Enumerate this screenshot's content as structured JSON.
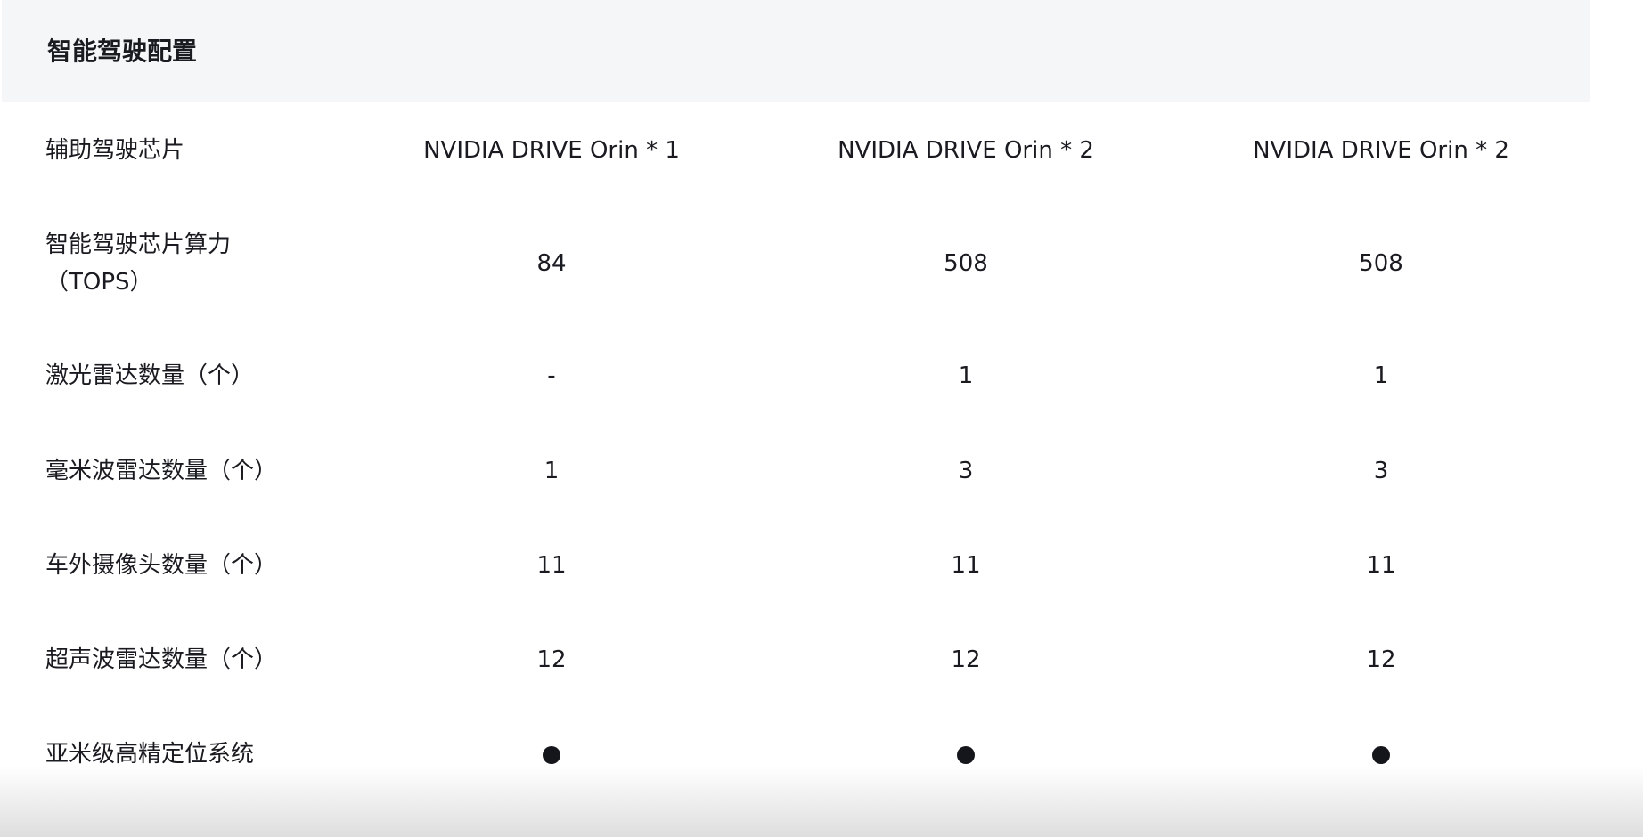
{
  "section": {
    "title": "智能驾驶配置"
  },
  "rows": [
    {
      "label": "辅助驾驶芯片",
      "values": [
        "NVIDIA DRIVE Orin * 1",
        "NVIDIA DRIVE Orin * 2",
        "NVIDIA DRIVE Orin * 2"
      ]
    },
    {
      "label": "智能驾驶芯片算力（TOPS）",
      "values": [
        "84",
        "508",
        "508"
      ]
    },
    {
      "label": "激光雷达数量（个）",
      "values": [
        "-",
        "1",
        "1"
      ]
    },
    {
      "label": "毫米波雷达数量（个）",
      "values": [
        "1",
        "3",
        "3"
      ]
    },
    {
      "label": "车外摄像头数量（个）",
      "values": [
        "11",
        "11",
        "11"
      ]
    },
    {
      "label": "超声波雷达数量（个）",
      "values": [
        "12",
        "12",
        "12"
      ]
    },
    {
      "label": "亚米级高精定位系统",
      "values": [
        "standard",
        "standard",
        "standard"
      ],
      "icon": "filled-dot-icon"
    }
  ]
}
